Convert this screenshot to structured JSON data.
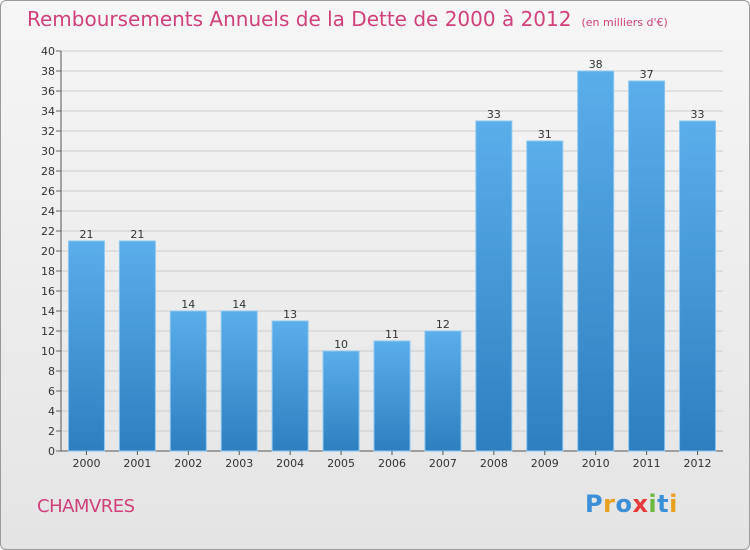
{
  "title": "Remboursements Annuels de la Dette de 2000 à 2012",
  "subtitle": "(en milliers d'€)",
  "commune": "CHAMVRES",
  "logo": {
    "letters": [
      "P",
      "r",
      "o",
      "x",
      "i",
      "t",
      "i"
    ],
    "colors": [
      "#3a8fd6",
      "#e8a020",
      "#3a8fd6",
      "#e83a3a",
      "#6cb840",
      "#3a8fd6",
      "#e8a020"
    ]
  },
  "colors": {
    "title": "#d0407a",
    "bar_top": "#5aaeea",
    "bar_bottom": "#2e7fc0",
    "grid": "#cccccc"
  },
  "chart_data": {
    "type": "bar",
    "categories": [
      "2000",
      "2001",
      "2002",
      "2003",
      "2004",
      "2005",
      "2006",
      "2007",
      "2008",
      "2009",
      "2010",
      "2011",
      "2012"
    ],
    "values": [
      21,
      21,
      14,
      14,
      13,
      10,
      11,
      12,
      33,
      31,
      38,
      37,
      33
    ],
    "title": "Remboursements Annuels de la Dette de 2000 à 2012",
    "ylim": [
      0,
      40
    ],
    "yticks": [
      0,
      2,
      4,
      6,
      8,
      10,
      12,
      14,
      16,
      18,
      20,
      22,
      24,
      26,
      28,
      30,
      32,
      34,
      36,
      38,
      40
    ],
    "grid": true,
    "data_labels": true
  }
}
